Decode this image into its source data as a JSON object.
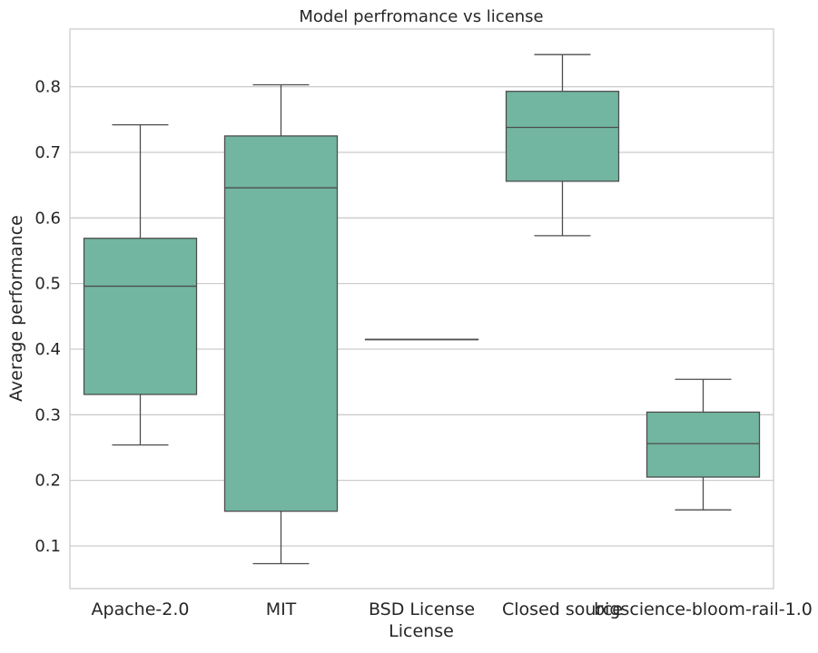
{
  "chart_data": {
    "type": "box",
    "title": "Model perfromance vs license",
    "xlabel": "License",
    "ylabel": "Average performance",
    "ylim": [
      0.035,
      0.888
    ],
    "yticks": [
      "0.1",
      "0.2",
      "0.3",
      "0.4",
      "0.5",
      "0.6",
      "0.7",
      "0.8"
    ],
    "ytick_values": [
      0.1,
      0.2,
      0.3,
      0.4,
      0.5,
      0.6,
      0.7,
      0.8
    ],
    "grid": "horizontal",
    "box_color": "#72b6a1",
    "line_color": "#4d4d4d",
    "categories": [
      "Apache-2.0",
      "MIT",
      "BSD License",
      "Closed source",
      "bigscience-bloom-rail-1.0"
    ],
    "boxes": [
      {
        "category": "Apache-2.0",
        "whisker_low": 0.254,
        "q1": 0.331,
        "median": 0.496,
        "q3": 0.569,
        "whisker_high": 0.742
      },
      {
        "category": "MIT",
        "whisker_low": 0.073,
        "q1": 0.153,
        "median": 0.646,
        "q3": 0.725,
        "whisker_high": 0.803
      },
      {
        "category": "BSD License",
        "whisker_low": 0.415,
        "q1": 0.415,
        "median": 0.415,
        "q3": 0.415,
        "whisker_high": 0.415
      },
      {
        "category": "Closed source",
        "whisker_low": 0.573,
        "q1": 0.656,
        "median": 0.738,
        "q3": 0.793,
        "whisker_high": 0.849
      },
      {
        "category": "bigscience-bloom-rail-1.0",
        "whisker_low": 0.155,
        "q1": 0.205,
        "median": 0.256,
        "q3": 0.304,
        "whisker_high": 0.354
      }
    ]
  }
}
